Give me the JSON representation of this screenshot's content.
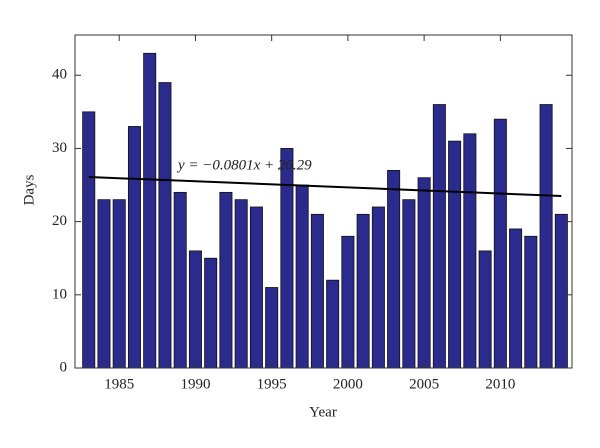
{
  "chart_data": {
    "type": "bar",
    "x_label": "Year",
    "y_label": "Days",
    "annotation": "y = −0.0801x + 26.29",
    "x": [
      1983,
      1984,
      1985,
      1986,
      1987,
      1988,
      1989,
      1990,
      1991,
      1992,
      1993,
      1994,
      1995,
      1996,
      1997,
      1998,
      1999,
      2000,
      2001,
      2002,
      2003,
      2004,
      2005,
      2006,
      2007,
      2008,
      2009,
      2010,
      2011,
      2012,
      2013,
      2014
    ],
    "values": [
      35,
      23,
      23,
      33,
      43,
      39,
      24,
      16,
      15,
      24,
      23,
      22,
      11,
      30,
      25,
      21,
      12,
      18,
      21,
      22,
      27,
      23,
      26,
      36,
      31,
      32,
      16,
      34,
      19,
      18,
      36,
      21
    ],
    "color": "#2b2b8e",
    "trendline": {
      "x": [
        1983,
        2014
      ],
      "values": [
        26.1,
        23.5
      ],
      "color": "#000000"
    },
    "xlim": [
      1982.1,
      2014.7
    ],
    "xticks": [
      1985,
      1990,
      1995,
      2000,
      2005,
      2010
    ],
    "ylim": [
      0,
      45.5
    ],
    "yticks": [
      0,
      10,
      20,
      30,
      40
    ]
  }
}
